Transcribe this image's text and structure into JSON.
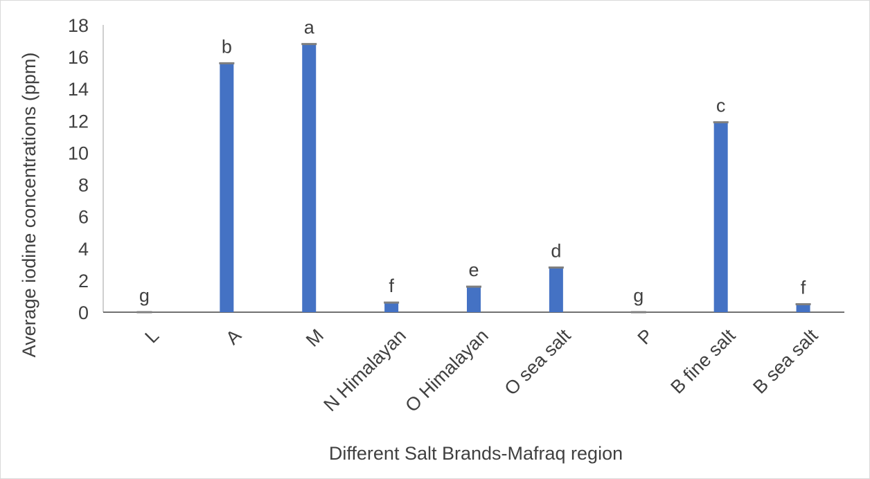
{
  "chart_data": {
    "type": "bar",
    "title": "",
    "xlabel": "Different Salt Brands-Mafraq region",
    "ylabel": "Average iodine concentrations (ppm)",
    "ylim": [
      0,
      18
    ],
    "yticks": [
      "0",
      "2",
      "4",
      "6",
      "8",
      "10",
      "12",
      "14",
      "16",
      "18"
    ],
    "categories": [
      "L",
      "A",
      "M",
      "N Himalayan",
      "O Himalayan",
      "O sea salt",
      "P",
      "B fine salt",
      "B sea salt"
    ],
    "values": [
      0,
      15.6,
      16.8,
      0.6,
      1.6,
      2.8,
      0,
      11.9,
      0.5
    ],
    "significance_letters": [
      "g",
      "b",
      "a",
      "f",
      "e",
      "d",
      "g",
      "c",
      "f"
    ],
    "grid": false,
    "legend": "none",
    "colors": {
      "bar": "#4472c4",
      "error_bar": "#7f7f7f",
      "axis": "#404040",
      "text": "#404040"
    }
  }
}
